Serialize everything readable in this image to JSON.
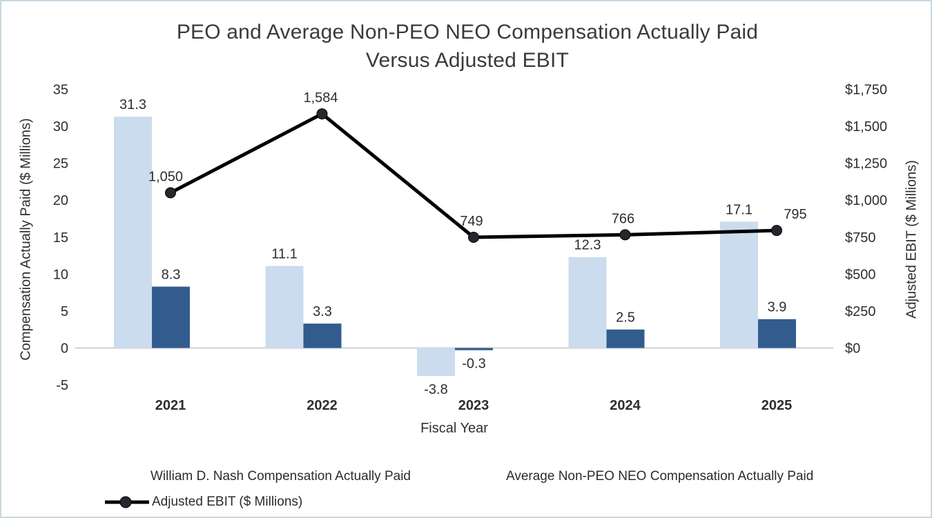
{
  "chart_data": {
    "type": "combo-bar-line",
    "title_lines": [
      "PEO and Average Non-PEO NEO Compensation Actually Paid",
      "Versus Adjusted EBIT"
    ],
    "categories": [
      "2021",
      "2022",
      "2023",
      "2024",
      "2025"
    ],
    "series": [
      {
        "name": "William D. Nash Compensation Actually Paid",
        "type": "bar",
        "axis": "left",
        "color": "#ccdcef",
        "values": [
          31.3,
          11.1,
          -3.8,
          12.3,
          17.1
        ],
        "labels": [
          "31.3",
          "11.1",
          "-3.8",
          "12.3",
          "17.1"
        ]
      },
      {
        "name": "Average Non-PEO NEO Compensation Actually Paid",
        "type": "bar",
        "axis": "left",
        "color": "#335c8e",
        "values": [
          8.3,
          3.3,
          -0.3,
          2.5,
          3.9
        ],
        "labels": [
          "8.3",
          "3.3",
          "-0.3",
          "2.5",
          "3.9"
        ]
      },
      {
        "name": "Adjusted EBIT ($ Millions)",
        "type": "line",
        "axis": "right",
        "color": "#000000",
        "marker_color": "#26262e",
        "values": [
          1050,
          1584,
          749,
          766,
          795
        ],
        "labels": [
          "1,050",
          "1,584",
          "749",
          "766",
          "795"
        ]
      }
    ],
    "x_axis": {
      "title": "Fiscal Year"
    },
    "left_axis": {
      "title": "Compensation Actually Paid ($ Millions)",
      "max": 35,
      "min": -5,
      "step": 5,
      "ticks": [
        "35",
        "30",
        "25",
        "20",
        "15",
        "10",
        "5",
        "0",
        "-5"
      ]
    },
    "right_axis": {
      "title": "Adjusted EBIT ($ Millions)",
      "max": 1750,
      "min": 0,
      "step": 250,
      "ticks": [
        "$1,750",
        "$1,500",
        "$1,250",
        "$1,000",
        "$750",
        "$500",
        "$250",
        "$0"
      ]
    },
    "grid": "zero-baseline-only",
    "zero_line_color": "#d8d8d8",
    "legend_position": "bottom-left"
  }
}
